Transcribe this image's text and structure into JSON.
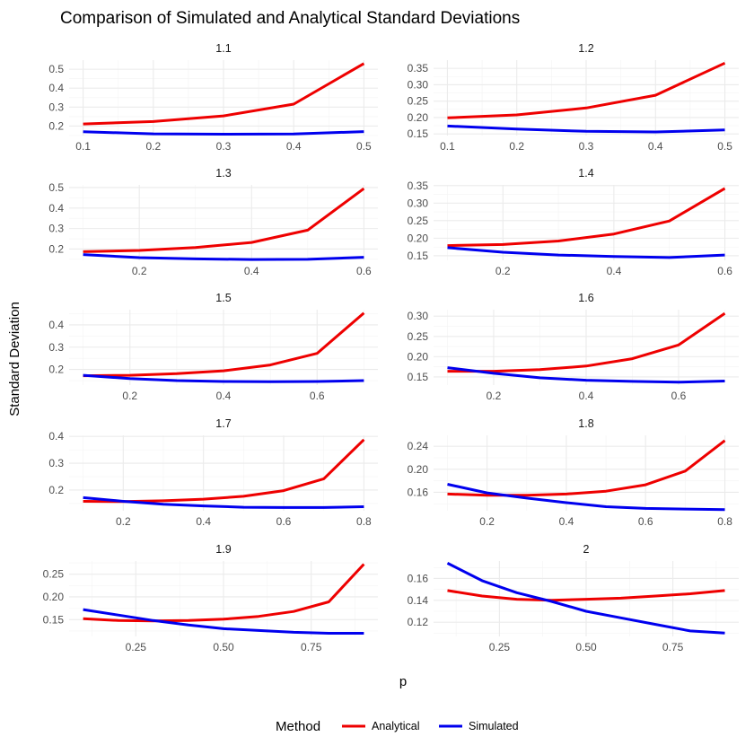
{
  "chart_data": {
    "type": "line",
    "title": "Comparison of Simulated and Analytical Standard Deviations",
    "xlabel": "p",
    "ylabel": "Standard Deviation",
    "grid": true,
    "legend": {
      "title": "Method",
      "position": "bottom",
      "entries": [
        {
          "name": "Analytical",
          "color": "#ee0000"
        },
        {
          "name": "Simulated",
          "color": "#0000ee"
        }
      ]
    },
    "facets": [
      {
        "label": "1.1",
        "x": [
          0.1,
          0.2,
          0.3,
          0.4,
          0.5
        ],
        "xticks": [
          {
            "v": 0.1,
            "t": "0.1"
          },
          {
            "v": 0.2,
            "t": "0.2"
          },
          {
            "v": 0.3,
            "t": "0.3"
          },
          {
            "v": 0.4,
            "t": "0.4"
          },
          {
            "v": 0.5,
            "t": "0.5"
          }
        ],
        "xlim": [
          0.08,
          0.52
        ],
        "yticks": [
          {
            "v": 0.2,
            "t": "0.2"
          },
          {
            "v": 0.3,
            "t": "0.3"
          },
          {
            "v": 0.4,
            "t": "0.4"
          },
          {
            "v": 0.5,
            "t": "0.5"
          }
        ],
        "ylim": [
          0.15,
          0.548
        ],
        "series": [
          {
            "name": "Analytical",
            "values": [
              0.211,
              0.224,
              0.254,
              0.316,
              0.53
            ]
          },
          {
            "name": "Simulated",
            "values": [
              0.17,
              0.159,
              0.157,
              0.158,
              0.171
            ]
          }
        ]
      },
      {
        "label": "1.2",
        "x": [
          0.1,
          0.2,
          0.3,
          0.4,
          0.5
        ],
        "xticks": [
          {
            "v": 0.1,
            "t": "0.1"
          },
          {
            "v": 0.2,
            "t": "0.2"
          },
          {
            "v": 0.3,
            "t": "0.3"
          },
          {
            "v": 0.4,
            "t": "0.4"
          },
          {
            "v": 0.5,
            "t": "0.5"
          }
        ],
        "xlim": [
          0.08,
          0.52
        ],
        "yticks": [
          {
            "v": 0.15,
            "t": "0.15"
          },
          {
            "v": 0.2,
            "t": "0.20"
          },
          {
            "v": 0.25,
            "t": "0.25"
          },
          {
            "v": 0.3,
            "t": "0.30"
          },
          {
            "v": 0.35,
            "t": "0.35"
          }
        ],
        "ylim": [
          0.145,
          0.375
        ],
        "series": [
          {
            "name": "Analytical",
            "values": [
              0.199,
              0.208,
              0.229,
              0.268,
              0.366
            ]
          },
          {
            "name": "Simulated",
            "values": [
              0.174,
              0.165,
              0.158,
              0.156,
              0.162
            ]
          }
        ]
      },
      {
        "label": "1.3",
        "x": [
          0.1,
          0.2,
          0.3,
          0.4,
          0.5,
          0.6
        ],
        "xticks": [
          {
            "v": 0.2,
            "t": "0.2"
          },
          {
            "v": 0.4,
            "t": "0.4"
          },
          {
            "v": 0.6,
            "t": "0.6"
          }
        ],
        "xlim": [
          0.075,
          0.625
        ],
        "yticks": [
          {
            "v": 0.2,
            "t": "0.2"
          },
          {
            "v": 0.3,
            "t": "0.3"
          },
          {
            "v": 0.4,
            "t": "0.4"
          },
          {
            "v": 0.5,
            "t": "0.5"
          }
        ],
        "ylim": [
          0.145,
          0.513
        ],
        "series": [
          {
            "name": "Analytical",
            "values": [
              0.187,
              0.193,
              0.207,
              0.232,
              0.292,
              0.495
            ]
          },
          {
            "name": "Simulated",
            "values": [
              0.173,
              0.158,
              0.152,
              0.149,
              0.15,
              0.16
            ]
          }
        ]
      },
      {
        "label": "1.4",
        "x": [
          0.1,
          0.2,
          0.3,
          0.4,
          0.5,
          0.6
        ],
        "xticks": [
          {
            "v": 0.2,
            "t": "0.2"
          },
          {
            "v": 0.4,
            "t": "0.4"
          },
          {
            "v": 0.6,
            "t": "0.6"
          }
        ],
        "xlim": [
          0.075,
          0.625
        ],
        "yticks": [
          {
            "v": 0.15,
            "t": "0.15"
          },
          {
            "v": 0.2,
            "t": "0.20"
          },
          {
            "v": 0.25,
            "t": "0.25"
          },
          {
            "v": 0.3,
            "t": "0.30"
          },
          {
            "v": 0.35,
            "t": "0.35"
          }
        ],
        "ylim": [
          0.137,
          0.352
        ],
        "series": [
          {
            "name": "Analytical",
            "values": [
              0.179,
              0.182,
              0.192,
              0.212,
              0.249,
              0.342
            ]
          },
          {
            "name": "Simulated",
            "values": [
              0.173,
              0.16,
              0.152,
              0.148,
              0.145,
              0.152
            ]
          }
        ]
      },
      {
        "label": "1.5",
        "x": [
          0.1,
          0.2,
          0.3,
          0.4,
          0.5,
          0.6,
          0.7
        ],
        "xticks": [
          {
            "v": 0.2,
            "t": "0.2"
          },
          {
            "v": 0.4,
            "t": "0.4"
          },
          {
            "v": 0.6,
            "t": "0.6"
          }
        ],
        "xlim": [
          0.07,
          0.73
        ],
        "yticks": [
          {
            "v": 0.2,
            "t": "0.2"
          },
          {
            "v": 0.3,
            "t": "0.3"
          },
          {
            "v": 0.4,
            "t": "0.4"
          }
        ],
        "ylim": [
          0.13,
          0.468
        ],
        "series": [
          {
            "name": "Analytical",
            "values": [
              0.172,
              0.174,
              0.181,
              0.194,
              0.22,
              0.272,
              0.453
            ]
          },
          {
            "name": "Simulated",
            "values": [
              0.174,
              0.159,
              0.15,
              0.146,
              0.145,
              0.146,
              0.15
            ]
          }
        ]
      },
      {
        "label": "1.6",
        "x": [
          0.1,
          0.2,
          0.3,
          0.4,
          0.5,
          0.6,
          0.7
        ],
        "xticks": [
          {
            "v": 0.2,
            "t": "0.2"
          },
          {
            "v": 0.4,
            "t": "0.4"
          },
          {
            "v": 0.6,
            "t": "0.6"
          }
        ],
        "xlim": [
          0.07,
          0.73
        ],
        "yticks": [
          {
            "v": 0.15,
            "t": "0.15"
          },
          {
            "v": 0.2,
            "t": "0.20"
          },
          {
            "v": 0.25,
            "t": "0.25"
          },
          {
            "v": 0.3,
            "t": "0.30"
          }
        ],
        "ylim": [
          0.13,
          0.316
        ],
        "series": [
          {
            "name": "Analytical",
            "values": [
              0.164,
              0.164,
              0.168,
              0.177,
              0.195,
              0.229,
              0.307
            ]
          },
          {
            "name": "Simulated",
            "values": [
              0.173,
              0.159,
              0.148,
              0.142,
              0.139,
              0.137,
              0.14
            ]
          }
        ]
      },
      {
        "label": "1.7",
        "x": [
          0.1,
          0.2,
          0.3,
          0.4,
          0.5,
          0.6,
          0.7,
          0.8
        ],
        "xticks": [
          {
            "v": 0.2,
            "t": "0.2"
          },
          {
            "v": 0.4,
            "t": "0.4"
          },
          {
            "v": 0.6,
            "t": "0.6"
          },
          {
            "v": 0.8,
            "t": "0.8"
          }
        ],
        "xlim": [
          0.065,
          0.835
        ],
        "yticks": [
          {
            "v": 0.2,
            "t": "0.2"
          },
          {
            "v": 0.3,
            "t": "0.3"
          },
          {
            "v": 0.4,
            "t": "0.4"
          }
        ],
        "ylim": [
          0.123,
          0.404
        ],
        "series": [
          {
            "name": "Analytical",
            "values": [
              0.158,
              0.157,
              0.16,
              0.166,
              0.177,
              0.198,
              0.242,
              0.388
            ]
          },
          {
            "name": "Simulated",
            "values": [
              0.172,
              0.158,
              0.147,
              0.141,
              0.136,
              0.135,
              0.135,
              0.138
            ]
          }
        ]
      },
      {
        "label": "1.8",
        "x": [
          0.1,
          0.2,
          0.3,
          0.4,
          0.5,
          0.6,
          0.7,
          0.8
        ],
        "xticks": [
          {
            "v": 0.2,
            "t": "0.2"
          },
          {
            "v": 0.4,
            "t": "0.4"
          },
          {
            "v": 0.6,
            "t": "0.6"
          },
          {
            "v": 0.8,
            "t": "0.8"
          }
        ],
        "xlim": [
          0.065,
          0.835
        ],
        "yticks": [
          {
            "v": 0.16,
            "t": "0.16"
          },
          {
            "v": 0.2,
            "t": "0.20"
          },
          {
            "v": 0.24,
            "t": "0.24"
          }
        ],
        "ylim": [
          0.128,
          0.259
        ],
        "series": [
          {
            "name": "Analytical",
            "values": [
              0.157,
              0.155,
              0.155,
              0.157,
              0.162,
              0.173,
              0.197,
              0.25
            ]
          },
          {
            "name": "Simulated",
            "values": [
              0.174,
              0.159,
              0.15,
              0.142,
              0.135,
              0.132,
              0.131,
              0.13
            ]
          }
        ]
      },
      {
        "label": "1.9",
        "x": [
          0.1,
          0.2,
          0.3,
          0.4,
          0.5,
          0.6,
          0.7,
          0.8,
          0.9
        ],
        "xticks": [
          {
            "v": 0.25,
            "t": "0.25"
          },
          {
            "v": 0.5,
            "t": "0.50"
          },
          {
            "v": 0.75,
            "t": "0.75"
          }
        ],
        "xlim": [
          0.06,
          0.94
        ],
        "yticks": [
          {
            "v": 0.15,
            "t": "0.15"
          },
          {
            "v": 0.2,
            "t": "0.20"
          },
          {
            "v": 0.25,
            "t": "0.25"
          }
        ],
        "ylim": [
          0.113,
          0.279
        ],
        "series": [
          {
            "name": "Analytical",
            "values": [
              0.152,
              0.148,
              0.147,
              0.148,
              0.151,
              0.157,
              0.168,
              0.189,
              0.272
            ]
          },
          {
            "name": "Simulated",
            "values": [
              0.172,
              0.16,
              0.148,
              0.138,
              0.13,
              0.126,
              0.122,
              0.12,
              0.12
            ]
          }
        ]
      },
      {
        "label": "2",
        "x": [
          0.1,
          0.2,
          0.3,
          0.4,
          0.5,
          0.6,
          0.7,
          0.8,
          0.9
        ],
        "xticks": [
          {
            "v": 0.25,
            "t": "0.25"
          },
          {
            "v": 0.5,
            "t": "0.50"
          },
          {
            "v": 0.75,
            "t": "0.75"
          }
        ],
        "xlim": [
          0.06,
          0.94
        ],
        "yticks": [
          {
            "v": 0.12,
            "t": "0.12"
          },
          {
            "v": 0.14,
            "t": "0.14"
          },
          {
            "v": 0.16,
            "t": "0.16"
          }
        ],
        "ylim": [
          0.107,
          0.176
        ],
        "series": [
          {
            "name": "Analytical",
            "values": [
              0.149,
              0.144,
              0.141,
              0.14,
              0.141,
              0.142,
              0.144,
              0.146,
              0.149
            ]
          },
          {
            "name": "Simulated",
            "values": [
              0.174,
              0.158,
              0.147,
              0.139,
              0.13,
              0.124,
              0.118,
              0.112,
              0.11
            ]
          }
        ]
      }
    ]
  }
}
